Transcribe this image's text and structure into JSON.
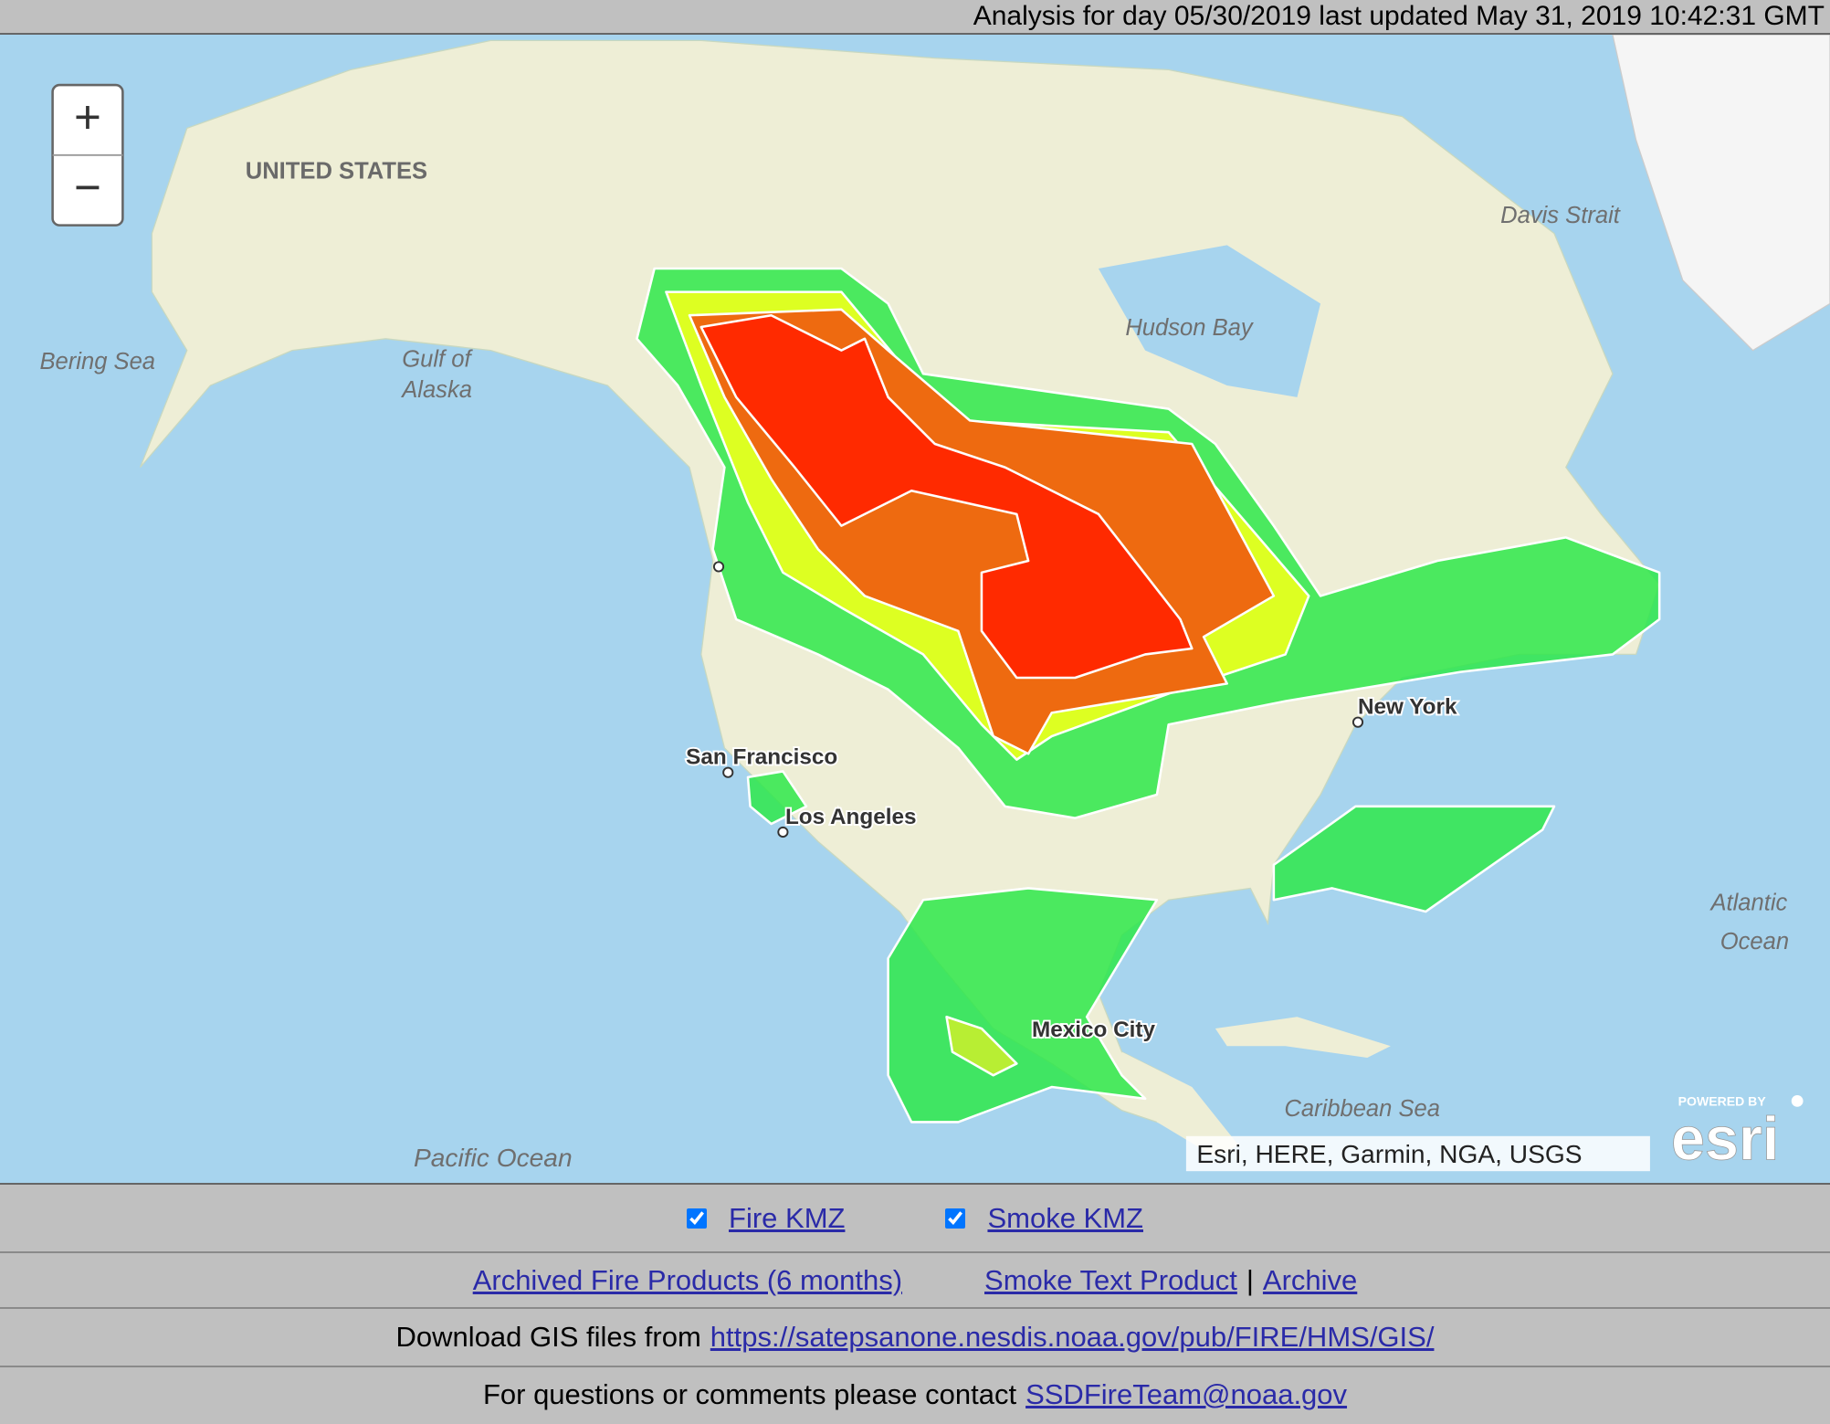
{
  "header": {
    "status": "Analysis for day 05/30/2019 last updated May 31, 2019 10:42:31 GMT"
  },
  "map": {
    "zoom_in": "+",
    "zoom_out": "−",
    "labels": {
      "alaska": "UNITED STATES",
      "bering_sea": "Bering Sea",
      "gulf_of_alaska_1": "Gulf of",
      "gulf_of_alaska_2": "Alaska",
      "hudson_bay": "Hudson Bay",
      "davis_strait": "Davis Strait",
      "san_francisco": "San Francisco",
      "los_angeles": "Los Angeles",
      "new_york": "New York",
      "mexico_city": "Mexico City",
      "atlantic_1": "Atlantic",
      "atlantic_2": "Ocean",
      "caribbean_sea": "Caribbean Sea",
      "pacific_ocean": "Pacific Ocean"
    },
    "attribution": "Esri, HERE, Garmin, NGA, USGS",
    "logo_caption": "POWERED BY",
    "logo": "esri"
  },
  "controls": {
    "layers": [
      {
        "label": "Fire KMZ",
        "checked": true
      },
      {
        "label": "Smoke KMZ",
        "checked": true
      }
    ]
  },
  "links": {
    "archived": "Archived Fire Products (6 months)",
    "smoke_text": "Smoke Text Product",
    "separator": "|",
    "archive": "Archive"
  },
  "download": {
    "text": "Download GIS files from",
    "url": "https://satepsanone.nesdis.noaa.gov/pub/FIRE/HMS/GIS/"
  },
  "contact": {
    "text": "For questions or comments please contact",
    "email": "SSDFireTeam@noaa.gov"
  }
}
